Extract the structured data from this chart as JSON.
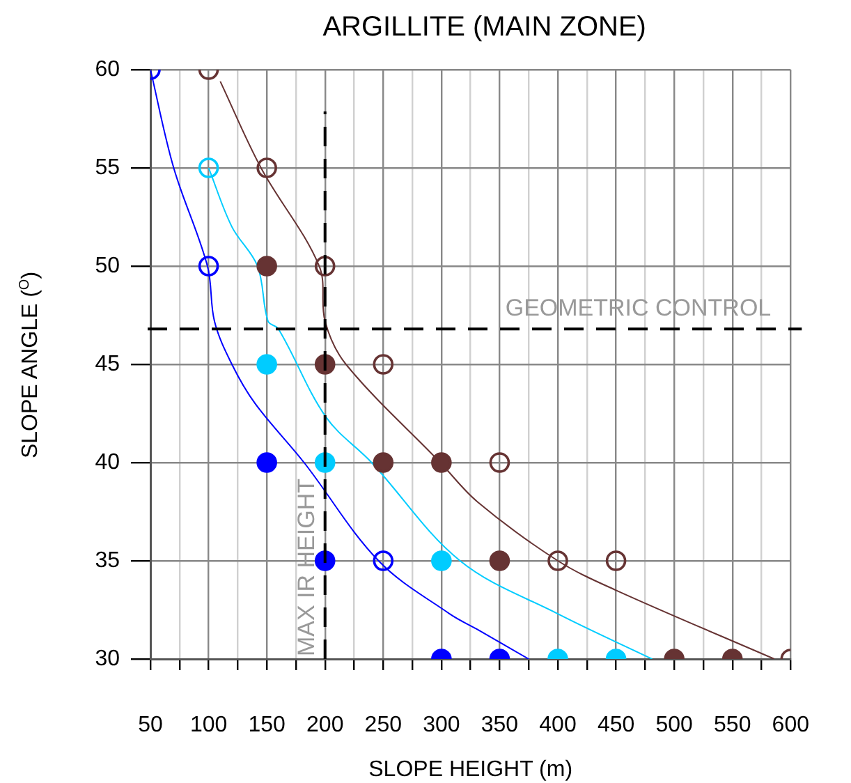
{
  "chart_data": {
    "type": "scatter",
    "title": "ARGILLITE (MAIN ZONE)",
    "xlabel": "SLOPE HEIGHT (m)",
    "ylabel": "SLOPE ANGLE ($^{O}$)",
    "xlim": [
      50,
      600
    ],
    "ylim": [
      30,
      60
    ],
    "xticks": [
      50,
      {
        "value": 75,
        "label": null
      },
      100,
      {
        "value": 125,
        "label": null
      },
      150,
      {
        "value": 175,
        "label": null
      },
      200,
      {
        "value": 225,
        "label": null
      },
      250,
      {
        "value": 275,
        "label": null
      },
      300,
      {
        "value": 325,
        "label": null
      },
      350,
      {
        "value": 375,
        "label": null
      },
      400,
      {
        "value": 425,
        "label": null
      },
      450,
      {
        "value": 475,
        "label": null
      },
      500,
      {
        "value": 525,
        "label": null
      },
      550,
      {
        "value": 575,
        "label": null
      },
      600
    ],
    "yticks": [
      30,
      35,
      40,
      45,
      50,
      55,
      60
    ],
    "grid": true,
    "legend": false,
    "marker": "circle",
    "series": [
      {
        "type": "line",
        "color": "#0000ff",
        "marker": "none",
        "x": [
          50,
          70,
          99,
          105,
          120,
          140,
          182,
          246,
          307,
          331,
          375
        ],
        "values": [
          60,
          55,
          50,
          47.2,
          45,
          43,
          40,
          35,
          32.3,
          31.5,
          30
        ]
      },
      {
        "type": "line",
        "color": "#00ccff",
        "marker": "none",
        "x": [
          100,
          120,
          142,
          151,
          160,
          201,
          240,
          316,
          400,
          481
        ],
        "values": [
          55,
          52,
          50,
          47.2,
          46.8,
          42.3,
          40,
          35,
          32.3,
          30
        ]
      },
      {
        "type": "line",
        "color": "#663333",
        "marker": "none",
        "x": [
          110,
          145,
          195,
          200,
          218,
          299,
          331,
          400,
          450,
          586
        ],
        "values": [
          59.4,
          55,
          50,
          47.2,
          45,
          40,
          38,
          35,
          33.5,
          30
        ]
      },
      {
        "color": "#0000ff",
        "x": [
          50,
          100,
          250
        ],
        "values": [
          60,
          50,
          35
        ]
      },
      {
        "color": "#0000ff",
        "x": [
          150,
          200,
          300,
          350
        ],
        "values": [
          40,
          35,
          30,
          30
        ]
      },
      {
        "color": "#00ccff",
        "x": [
          100
        ],
        "values": [
          55
        ]
      },
      {
        "color": "#00ccff",
        "x": [
          150,
          450
        ],
        "values": [
          45,
          30
        ]
      },
      {
        "color": "#00ccff",
        "x": [
          200,
          300,
          400
        ],
        "values": [
          40,
          35,
          30
        ]
      },
      {
        "color": "#663333",
        "x": [
          100,
          150,
          200,
          250,
          350,
          400,
          450,
          600
        ],
        "values": [
          60,
          55,
          50,
          45,
          40,
          35,
          35,
          30
        ]
      },
      {
        "color": "#663333",
        "x": [
          300
        ],
        "values": [
          40
        ]
      },
      {
        "color": "#663333",
        "x": [
          150,
          200,
          250,
          350,
          500,
          550
        ],
        "values": [
          50,
          45,
          40,
          35,
          30,
          30
        ]
      }
    ],
    "ref_lines": [
      {
        "axis": "y",
        "value": 46.8,
        "label": "GEOMETRIC CONTROL",
        "color": "#000000",
        "line_style": "dashed"
      },
      {
        "axis": "x",
        "value": 200,
        "label": "MAX IR HEIGHT",
        "color": "#000000",
        "line_style": "dashed"
      }
    ]
  }
}
